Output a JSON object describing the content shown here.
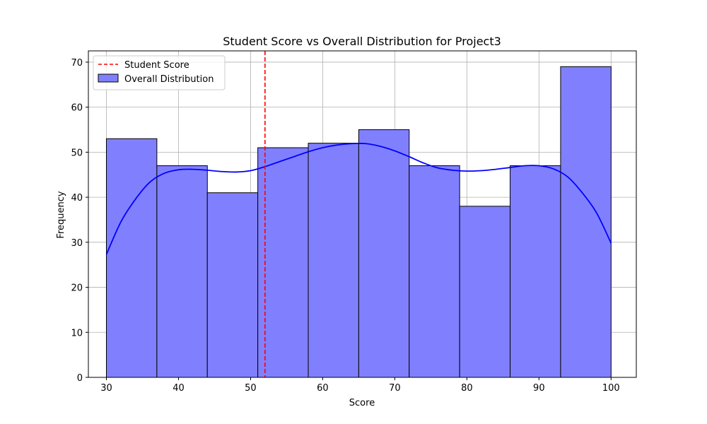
{
  "chart_data": {
    "type": "bar",
    "title": "Student Score vs Overall Distribution for Project3",
    "xlabel": "Score",
    "ylabel": "Frequency",
    "xlim": [
      27.5,
      103.5
    ],
    "ylim": [
      0,
      72.5
    ],
    "xticks": [
      30,
      40,
      50,
      60,
      70,
      80,
      90,
      100
    ],
    "yticks": [
      0,
      10,
      20,
      30,
      40,
      50,
      60,
      70
    ],
    "grid": true,
    "legend_position": "top-left",
    "bins": [
      {
        "start": 30,
        "end": 37,
        "count": 53
      },
      {
        "start": 37,
        "end": 44,
        "count": 47
      },
      {
        "start": 44,
        "end": 51,
        "count": 41
      },
      {
        "start": 51,
        "end": 58,
        "count": 51
      },
      {
        "start": 58,
        "end": 65,
        "count": 52
      },
      {
        "start": 65,
        "end": 72,
        "count": 55
      },
      {
        "start": 72,
        "end": 79,
        "count": 47
      },
      {
        "start": 79,
        "end": 86,
        "count": 38
      },
      {
        "start": 86,
        "end": 93,
        "count": 47
      },
      {
        "start": 93,
        "end": 100,
        "count": 69
      }
    ],
    "kde_curve": {
      "x": [
        30,
        32,
        34,
        36,
        38,
        40,
        42,
        44,
        46,
        48,
        50,
        52,
        54,
        56,
        58,
        60,
        62,
        64,
        66,
        68,
        70,
        72,
        74,
        76,
        78,
        80,
        82,
        84,
        86,
        88,
        90,
        92,
        94,
        96,
        98,
        100
      ],
      "y": [
        27.3,
        34.5,
        39.5,
        43.3,
        45.3,
        46.1,
        46.2,
        46.0,
        45.7,
        45.6,
        45.9,
        46.8,
        47.9,
        49.0,
        50.1,
        51.0,
        51.6,
        51.9,
        51.9,
        51.3,
        50.3,
        49.0,
        47.6,
        46.5,
        46.0,
        45.8,
        45.9,
        46.2,
        46.6,
        47.0,
        47.0,
        46.3,
        44.5,
        41.0,
        36.5,
        29.8
      ]
    },
    "student_score": 52,
    "legend": [
      {
        "label": "Student Score",
        "style": "dashed-line",
        "color": "#ff0000"
      },
      {
        "label": "Overall Distribution",
        "style": "patch",
        "color": "#8080ff"
      }
    ],
    "colors": {
      "bar_fill": "#8080ff",
      "bar_edge": "#000000",
      "kde_line": "#0000ff",
      "student_line": "#ff0000",
      "grid": "#b0b0b0"
    }
  }
}
